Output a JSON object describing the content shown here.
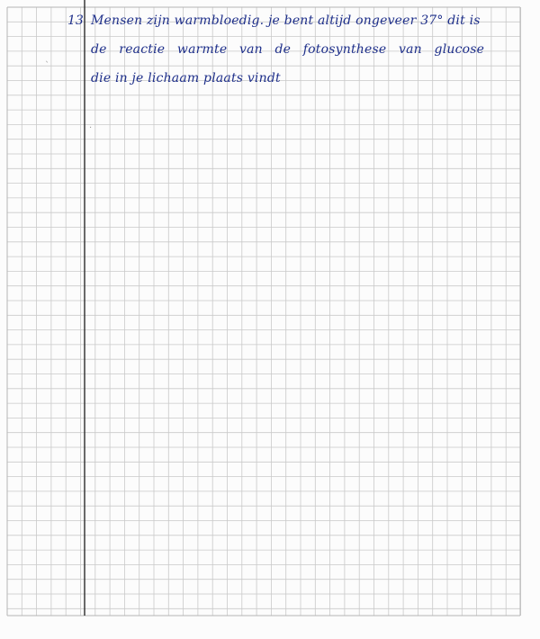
{
  "question_number": "13",
  "answer_lines": [
    "Mensen zijn warmbloedig. je bent altijd ongeveer 37° dit is",
    "de reactie warmte van de fotosynthese van glucose",
    "die in je lichaam plaats vindt"
  ],
  "colors": {
    "ink": "#1e2f8a",
    "grid_line": "#c9c9c9",
    "margin_line": "#2b2b2b",
    "paper": "#fcfcfc"
  }
}
